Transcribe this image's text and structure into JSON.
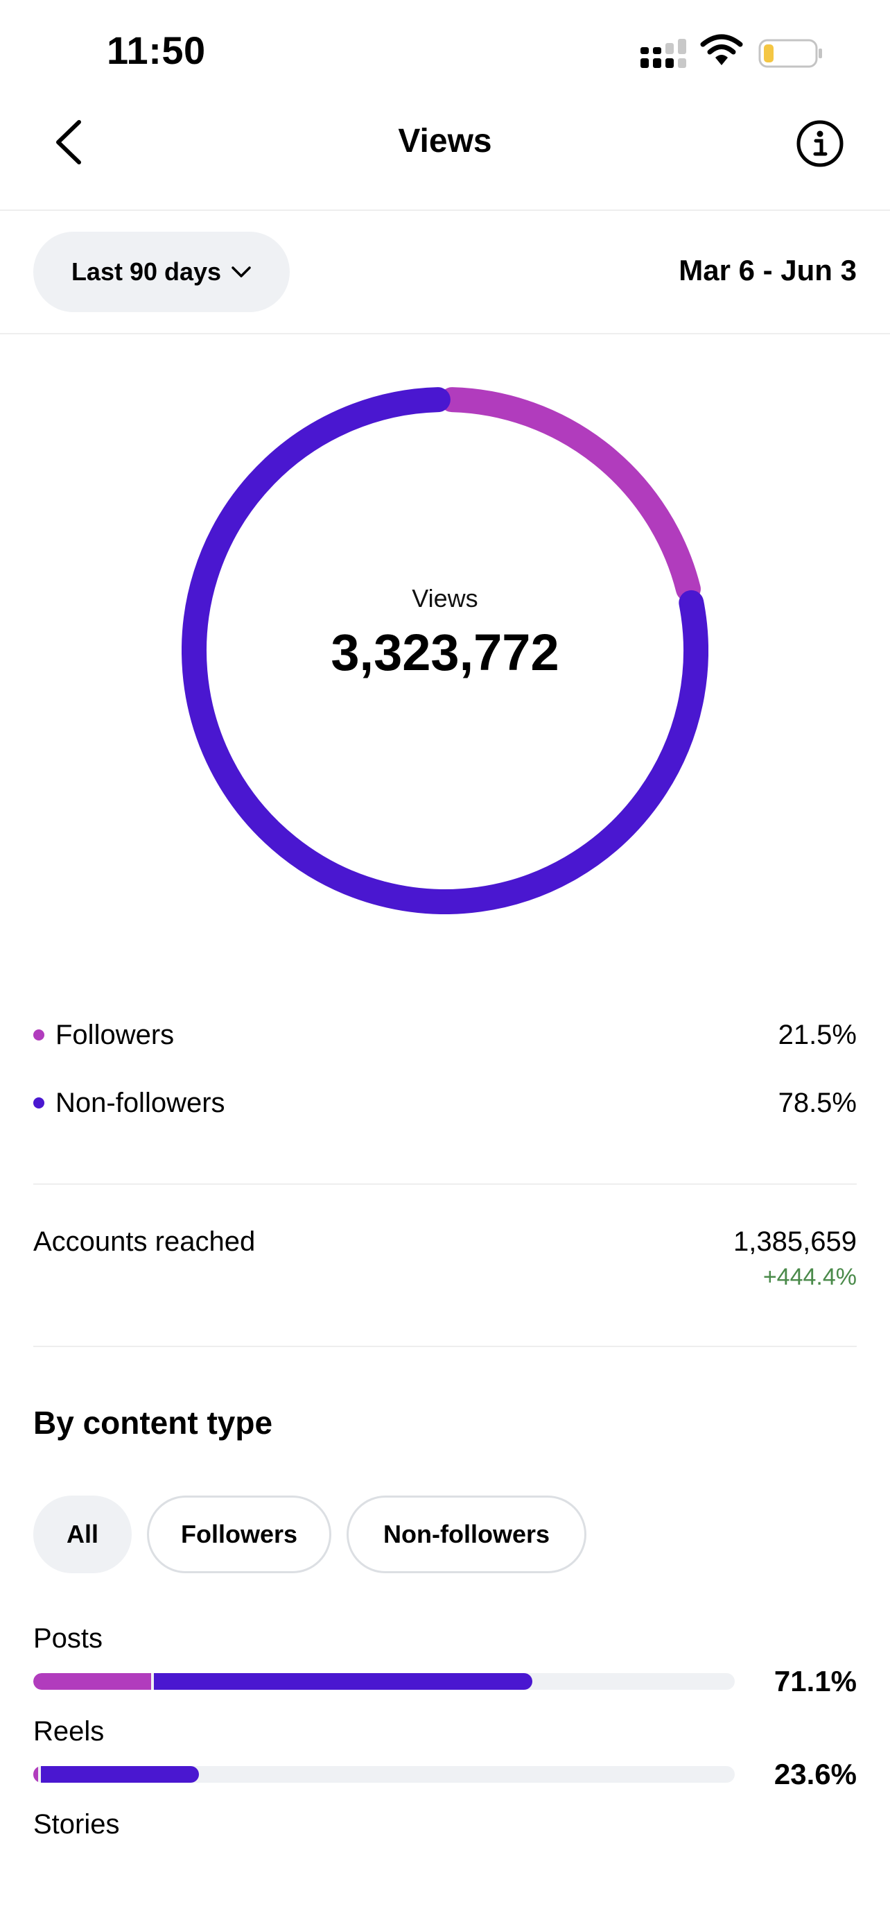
{
  "status_bar": {
    "time": "11:50"
  },
  "header": {
    "title": "Views"
  },
  "filter": {
    "range_label": "Last 90 days",
    "date_range": "Mar 6 - Jun 3"
  },
  "colors": {
    "followers": "#b13cbd",
    "non_followers": "#4a17d0",
    "track": "#eff1f4",
    "positive": "#4a8a4a"
  },
  "summary": {
    "label": "Views",
    "value": "3,323,772"
  },
  "legend": [
    {
      "name": "Followers",
      "value": "21.5%",
      "color": "#b13cbd"
    },
    {
      "name": "Non-followers",
      "value": "78.5%",
      "color": "#4a17d0"
    }
  ],
  "chart_data": {
    "type": "pie",
    "categories": [
      "Followers",
      "Non-followers"
    ],
    "values": [
      21.5,
      78.5
    ],
    "title": "Views",
    "total": "3,323,772"
  },
  "accounts_reached": {
    "label": "Accounts reached",
    "value": "1,385,659",
    "change": "+444.4%"
  },
  "content_type": {
    "title": "By content type",
    "chips": [
      "All",
      "Followers",
      "Non-followers"
    ],
    "active_chip": "All",
    "rows": [
      {
        "label": "Posts",
        "percent": "71.1%",
        "total": 71.1,
        "followers_share": 16.8
      },
      {
        "label": "Reels",
        "percent": "23.6%",
        "total": 23.6,
        "followers_share": 0.7
      },
      {
        "label": "Stories",
        "percent": "",
        "total": 0,
        "followers_share": 0
      }
    ]
  }
}
